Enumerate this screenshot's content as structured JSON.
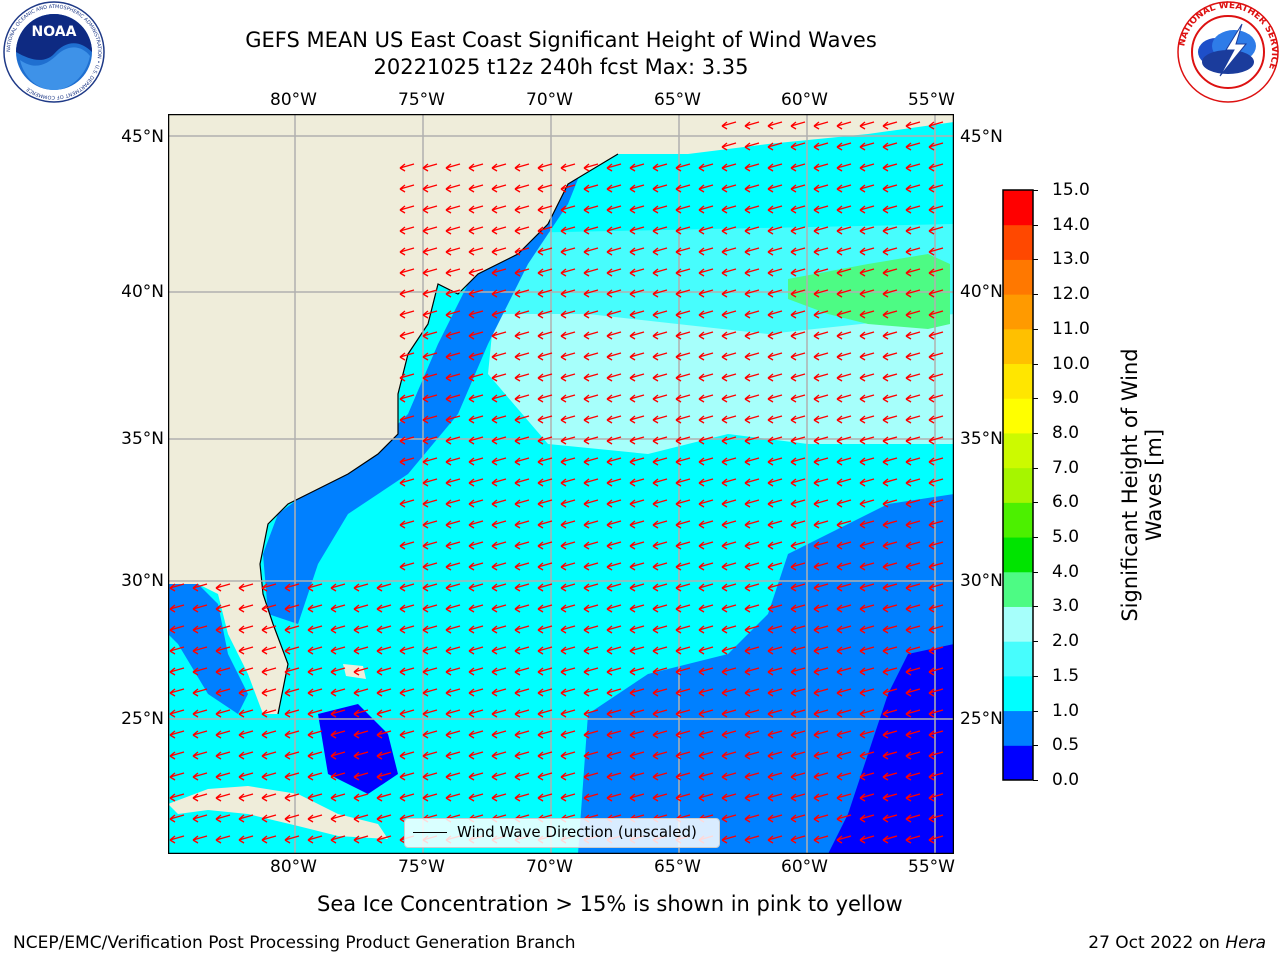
{
  "header": {
    "title_line1": "GEFS MEAN US East Coast Significant Height of Wind Waves",
    "title_line2": "20221025 t12z 240h fcst   Max: 3.35"
  },
  "logos": {
    "noaa_text": "NOAA",
    "noaa_ring": "NATIONAL OCEANIC AND ATMOSPHERIC ADMINISTRATION • U.S. DEPARTMENT OF COMMERCE",
    "nws_ring": "NATIONAL WEATHER SERVICE"
  },
  "map": {
    "lon_labels": [
      "80°W",
      "75°W",
      "70°W",
      "65°W",
      "60°W",
      "55°W"
    ],
    "lat_labels": [
      "45°N",
      "40°N",
      "35°N",
      "30°N",
      "25°N"
    ],
    "legend_label": "Wind Wave Direction (unscaled)",
    "colors": {
      "land": "#efedda",
      "very_low": "#0000ff",
      "low": "#0080ff",
      "mid": "#00ffff",
      "high": "#47fdfd",
      "higher": "#a6fffb",
      "peak": "#4dfb84",
      "arrow": "#ff0000",
      "grid": "#b0b0b0"
    }
  },
  "colorbar": {
    "label": "Significant Height of Wind Waves [m]",
    "tick_labels": [
      "0.0",
      "0.5",
      "1.0",
      "1.5",
      "2.0",
      "3.0",
      "4.0",
      "5.0",
      "6.0",
      "7.0",
      "8.0",
      "9.0",
      "10.0",
      "11.0",
      "12.0",
      "13.0",
      "14.0",
      "15.0"
    ],
    "colors": [
      "#0000ff",
      "#0080ff",
      "#00ffff",
      "#47fdfd",
      "#a6fffb",
      "#4dfb84",
      "#00e400",
      "#4cf000",
      "#a6f500",
      "#ccfa00",
      "#ffff00",
      "#ffe600",
      "#ffc000",
      "#ff9a00",
      "#ff7800",
      "#ff4800",
      "#ff0000"
    ]
  },
  "subtitle": "Sea Ice Concentration > 15% is shown in pink to yellow",
  "footer": {
    "left": "NCEP/EMC/Verification Post Processing Product Generation Branch",
    "right_date": "27 Oct 2022 on ",
    "right_host": "Hera"
  }
}
